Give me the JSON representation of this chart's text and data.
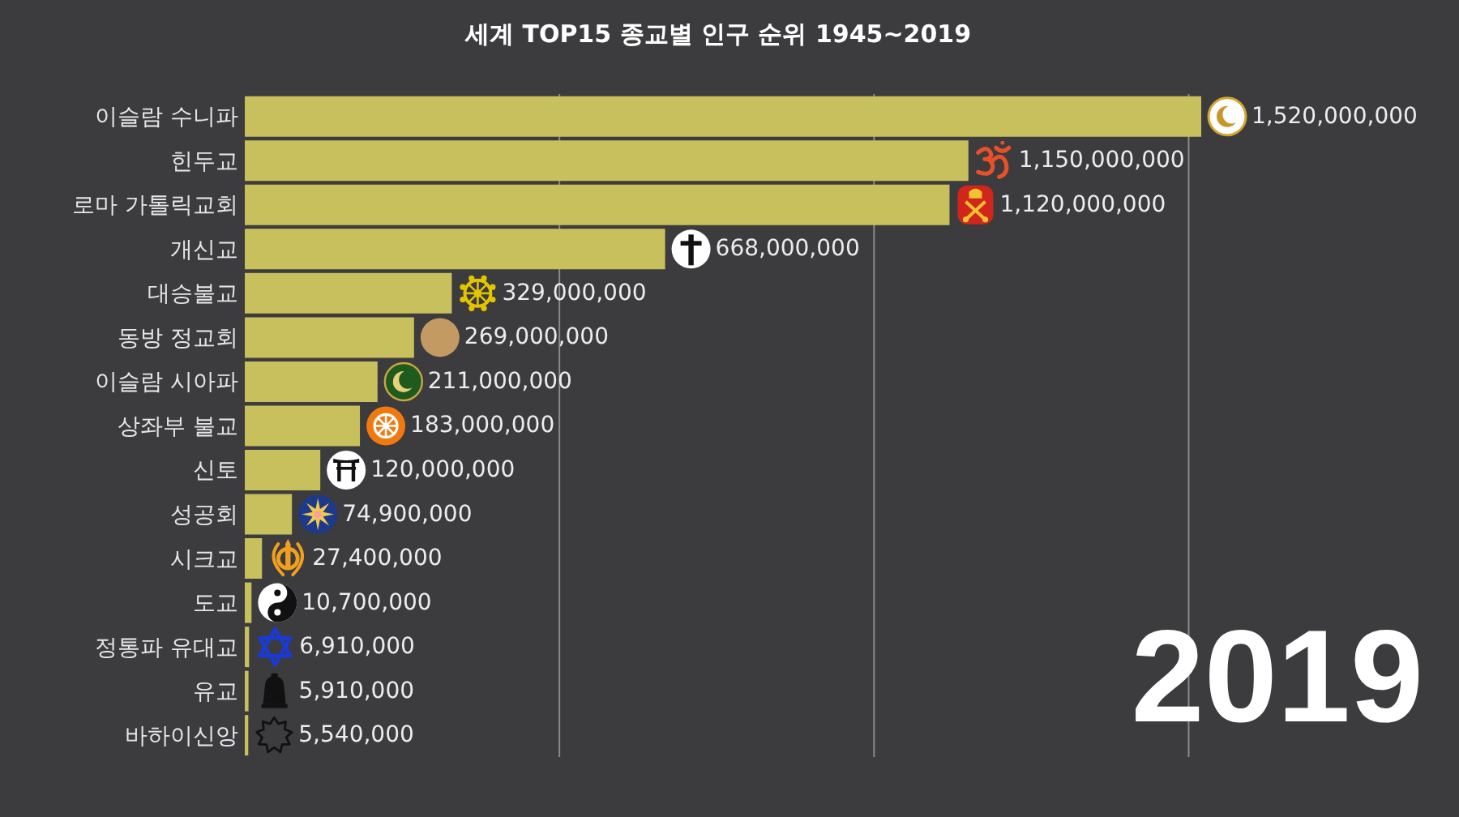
{
  "chart_data": {
    "type": "bar",
    "orientation": "horizontal",
    "title": "세계 TOP15 종교별 인구 순위 1945~2019",
    "categories": [
      "이슬람 수니파",
      "힌두교",
      "로마 가톨릭교회",
      "개신교",
      "대승불교",
      "동방 정교회",
      "이슬람 시아파",
      "상좌부 불교",
      "신토",
      "성공회",
      "시크교",
      "도교",
      "정통파 유대교",
      "유교",
      "바하이신앙"
    ],
    "values": [
      1520000000,
      1150000000,
      1120000000,
      668000000,
      329000000,
      269000000,
      211000000,
      183000000,
      120000000,
      74900000,
      27400000,
      10700000,
      6910000,
      5910000,
      5540000
    ],
    "value_labels": [
      "1,520,000,000",
      "1,150,000,000",
      "1,120,000,000",
      "668,000,000",
      "329,000,000",
      "269,000,000",
      "211,000,000",
      "183,000,000",
      "120,000,000",
      "74,900,000",
      "27,400,000",
      "10,700,000",
      "6,910,000",
      "5,910,000",
      "5,540,000"
    ],
    "color": "#c8bf5d",
    "xticks": [
      {
        "value": 500000000,
        "label": null
      },
      {
        "value": 1000000000,
        "label": null
      },
      {
        "value": 1500000000,
        "label": null
      }
    ],
    "grid": "x",
    "tick_labels": "y",
    "annotations": [
      "2019"
    ]
  }
}
